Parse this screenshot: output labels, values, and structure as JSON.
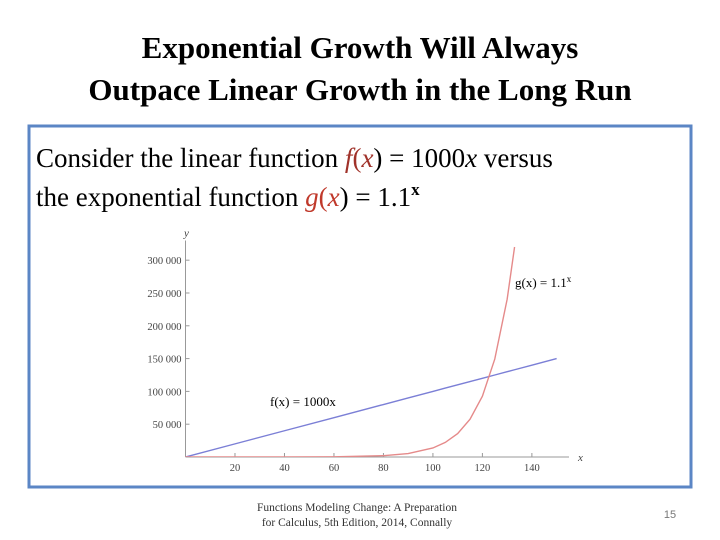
{
  "title": [
    "Exponential Growth Will Always",
    "Outpace Linear Growth in the Long Run"
  ],
  "body": [
    [
      "Consider the linear function ",
      "f",
      "(",
      "x",
      ") = 1000",
      "x",
      " versus"
    ],
    [
      "the exponential function ",
      "g",
      "(",
      "x",
      ") = 1.1",
      "x"
    ]
  ],
  "chart_data": {
    "type": "line",
    "x_label": "x",
    "y_label": "y",
    "annotations": [
      {
        "text": "g(x) = 1.1",
        "sup": "x"
      },
      {
        "text": "f(x) = 1000x"
      }
    ],
    "x": [
      0,
      20,
      40,
      60,
      80,
      90,
      100,
      105,
      110,
      115,
      120,
      125,
      130,
      133,
      140,
      150
    ],
    "series": [
      {
        "name": "f(x) = 1000x",
        "color": "#7b7fd6",
        "values": [
          0,
          20000,
          40000,
          60000,
          80000,
          90000,
          100000,
          105000,
          110000,
          115000,
          120000,
          125000,
          130000,
          133000,
          140000,
          150000
        ]
      },
      {
        "name": "g(x) = 1.1x",
        "color": "#e58a8a",
        "values": [
          1,
          7,
          45,
          304,
          2048,
          5313,
          13781,
          22195,
          35743,
          57565,
          92709,
          149308,
          240462,
          320054,
          null,
          null
        ]
      }
    ],
    "xlim": [
      0,
      155
    ],
    "ylim": [
      0,
      330000
    ],
    "xticks": [
      20,
      40,
      60,
      80,
      100,
      120,
      140
    ],
    "yticks": [
      {
        "value": 50000,
        "label": "50 000"
      },
      {
        "value": 100000,
        "label": "100 000"
      },
      {
        "value": 150000,
        "label": "150 000"
      },
      {
        "value": 200000,
        "label": "200 000"
      },
      {
        "value": 250000,
        "label": "250 000"
      },
      {
        "value": 300000,
        "label": "300 000"
      }
    ]
  },
  "footer": [
    "Functions Modeling Change: A Preparation",
    "for Calculus, 5th Edition, 2014, Connally"
  ],
  "page_number": "15"
}
